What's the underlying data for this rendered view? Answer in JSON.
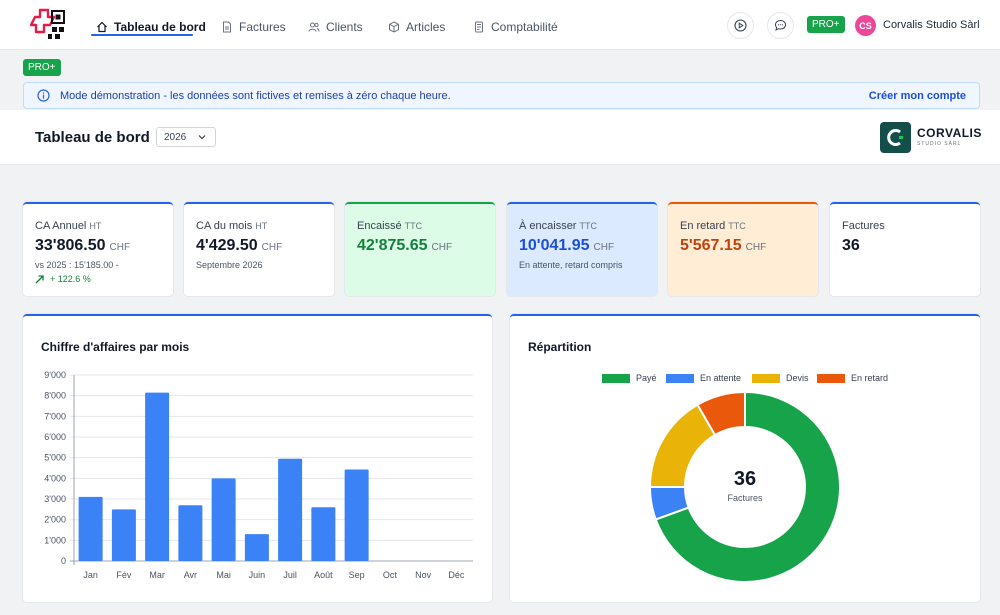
{
  "nav": {
    "items": [
      {
        "label": "Tableau de bord",
        "icon": "home-icon",
        "active": true
      },
      {
        "label": "Factures",
        "icon": "file-icon",
        "active": false
      },
      {
        "label": "Clients",
        "icon": "users-icon",
        "active": false
      },
      {
        "label": "Articles",
        "icon": "box-icon",
        "active": false
      },
      {
        "label": "Comptabilité",
        "icon": "ledger-icon",
        "active": false
      }
    ],
    "pro_badge": "PRO+",
    "avatar_initials": "CS",
    "user_name": "Corvalis Studio Sàrl"
  },
  "plan_badge": "PRO+",
  "banner": {
    "text": "Mode démonstration - les données sont fictives et remises à zéro chaque heure.",
    "link": "Créer mon compte"
  },
  "header": {
    "title": "Tableau de bord",
    "year": "2026",
    "brand_name": "CORVALIS",
    "brand_tagline": "STUDIO SÀRL"
  },
  "kpis": [
    {
      "label": "CA Annuel",
      "unit": "HT",
      "value": "33'806.50",
      "currency": "CHF",
      "sub": "vs 2025 : 15'185.00 -",
      "trend": "+ 122.6 %",
      "bg": "#ffffff",
      "color": "#111827",
      "border": "#2563eb"
    },
    {
      "label": "CA du mois",
      "unit": "HT",
      "value": "4'429.50",
      "currency": "CHF",
      "sub": "Septembre 2026",
      "bg": "#ffffff",
      "color": "#111827",
      "border": "#2563eb"
    },
    {
      "label": "Encaissé",
      "unit": "TTC",
      "value": "42'875.65",
      "currency": "CHF",
      "bg": "#dcfce7",
      "color": "#15803d",
      "border": "#16a34a"
    },
    {
      "label": "À encaisser",
      "unit": "TTC",
      "value": "10'041.95",
      "currency": "CHF",
      "sub": "En attente, retard compris",
      "bg": "#dbeafe",
      "color": "#1d4ed8",
      "border": "#2563eb"
    },
    {
      "label": "En retard",
      "unit": "TTC",
      "value": "5'567.15",
      "currency": "CHF",
      "bg": "#ffedd5",
      "color": "#c2410c",
      "border": "#ea580c"
    },
    {
      "label": "Factures",
      "value": "36",
      "bg": "#ffffff",
      "color": "#111827",
      "border": "#2563eb"
    }
  ],
  "charts": {
    "revenue_title": "Chiffre d'affaires par mois",
    "split_title": "Répartition",
    "donut_count": "36",
    "donut_label": "Factures"
  },
  "chart_data": [
    {
      "type": "bar",
      "title": "Chiffre d'affaires par mois",
      "categories": [
        "Jan",
        "Fév",
        "Mar",
        "Avr",
        "Mai",
        "Juin",
        "Juil",
        "Août",
        "Sep",
        "Oct",
        "Nov",
        "Déc"
      ],
      "values": [
        3100,
        2500,
        8150,
        2700,
        4000,
        1300,
        4950,
        2600,
        4430,
        0,
        0,
        0
      ],
      "ylim": [
        0,
        9000
      ],
      "yticks": [
        "0",
        "1'000",
        "2'000",
        "3'000",
        "4'000",
        "5'000",
        "6'000",
        "7'000",
        "8'000",
        "9'000"
      ],
      "color": "#3b82f6",
      "grid": true
    },
    {
      "type": "pie",
      "title": "Répartition",
      "labels": [
        "Payé",
        "En attente",
        "Devis",
        "En retard"
      ],
      "values": [
        25,
        2,
        6,
        3
      ],
      "colors": [
        "#16a34a",
        "#3b82f6",
        "#eab308",
        "#ea580c"
      ],
      "legend": "top"
    }
  ]
}
